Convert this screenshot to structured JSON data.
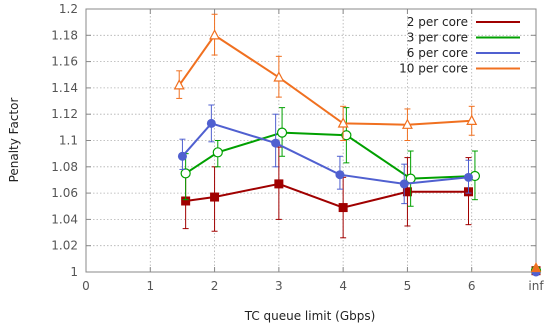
{
  "chart_data": {
    "type": "line",
    "xlabel": "TC queue limit (Gbps)",
    "ylabel": "Penalty Factor",
    "xlim": [
      0,
      7
    ],
    "ylim": [
      1,
      1.2
    ],
    "x_ticks": [
      {
        "value": 0,
        "label": "0"
      },
      {
        "value": 1,
        "label": "1"
      },
      {
        "value": 2,
        "label": "2"
      },
      {
        "value": 3,
        "label": "3"
      },
      {
        "value": 4,
        "label": "4"
      },
      {
        "value": 5,
        "label": "5"
      },
      {
        "value": 6,
        "label": "6"
      },
      {
        "value": 7,
        "label": "inf"
      }
    ],
    "y_ticks": [
      {
        "value": 1,
        "label": "1"
      },
      {
        "value": 1.02,
        "label": "1.02"
      },
      {
        "value": 1.04,
        "label": "1.04"
      },
      {
        "value": 1.06,
        "label": "1.06"
      },
      {
        "value": 1.08,
        "label": "1.08"
      },
      {
        "value": 1.1,
        "label": "1.1"
      },
      {
        "value": 1.12,
        "label": "1.12"
      },
      {
        "value": 1.14,
        "label": "1.14"
      },
      {
        "value": 1.16,
        "label": "1.16"
      },
      {
        "value": 1.18,
        "label": "1.18"
      },
      {
        "value": 1.2,
        "label": "1.2"
      }
    ],
    "grid": true,
    "legend_position": "top-right",
    "series": [
      {
        "name": "2 per core",
        "color": "#a00000",
        "marker": "square",
        "points": [
          {
            "x": 1.55,
            "y": 1.054,
            "lo": 1.033,
            "hi": 1.073
          },
          {
            "x": 2.0,
            "y": 1.057,
            "lo": 1.031,
            "hi": 1.08
          },
          {
            "x": 3.0,
            "y": 1.067,
            "lo": 1.04,
            "hi": 1.095
          },
          {
            "x": 4.0,
            "y": 1.049,
            "lo": 1.026,
            "hi": 1.072
          },
          {
            "x": 5.0,
            "y": 1.061,
            "lo": 1.035,
            "hi": 1.087
          },
          {
            "x": 5.95,
            "y": 1.061,
            "lo": 1.036,
            "hi": 1.087
          }
        ],
        "inf_value": 1.001
      },
      {
        "name": "3 per core",
        "color": "#00a000",
        "marker": "circle",
        "points": [
          {
            "x": 1.55,
            "y": 1.075,
            "lo": 1.055,
            "hi": 1.09
          },
          {
            "x": 2.05,
            "y": 1.091,
            "lo": 1.08,
            "hi": 1.1
          },
          {
            "x": 3.05,
            "y": 1.106,
            "lo": 1.088,
            "hi": 1.125
          },
          {
            "x": 4.05,
            "y": 1.104,
            "lo": 1.083,
            "hi": 1.125
          },
          {
            "x": 5.05,
            "y": 1.071,
            "lo": 1.05,
            "hi": 1.092
          },
          {
            "x": 6.05,
            "y": 1.073,
            "lo": 1.055,
            "hi": 1.092
          }
        ],
        "inf_value": 1.001
      },
      {
        "name": "6 per core",
        "color": "#5060d0",
        "marker": "filled-circle",
        "points": [
          {
            "x": 1.5,
            "y": 1.088,
            "lo": 1.078,
            "hi": 1.101
          },
          {
            "x": 1.95,
            "y": 1.113,
            "lo": 1.099,
            "hi": 1.127
          },
          {
            "x": 2.95,
            "y": 1.098,
            "lo": 1.08,
            "hi": 1.12
          },
          {
            "x": 3.95,
            "y": 1.074,
            "lo": 1.063,
            "hi": 1.088
          },
          {
            "x": 4.95,
            "y": 1.067,
            "lo": 1.052,
            "hi": 1.082
          },
          {
            "x": 5.95,
            "y": 1.072,
            "lo": 1.06,
            "hi": 1.085
          }
        ],
        "inf_value": 1.0
      },
      {
        "name": "10 per core",
        "color": "#f07020",
        "marker": "triangle",
        "points": [
          {
            "x": 1.45,
            "y": 1.142,
            "lo": 1.132,
            "hi": 1.153
          },
          {
            "x": 2.0,
            "y": 1.18,
            "lo": 1.165,
            "hi": 1.196
          },
          {
            "x": 3.0,
            "y": 1.148,
            "lo": 1.133,
            "hi": 1.164
          },
          {
            "x": 4.0,
            "y": 1.113,
            "lo": 1.1,
            "hi": 1.126
          },
          {
            "x": 5.0,
            "y": 1.112,
            "lo": 1.1,
            "hi": 1.124
          },
          {
            "x": 6.0,
            "y": 1.115,
            "lo": 1.104,
            "hi": 1.126
          }
        ],
        "inf_value": 1.003
      }
    ]
  }
}
